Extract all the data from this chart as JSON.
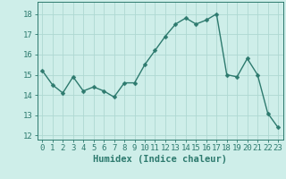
{
  "x": [
    0,
    1,
    2,
    3,
    4,
    5,
    6,
    7,
    8,
    9,
    10,
    11,
    12,
    13,
    14,
    15,
    16,
    17,
    18,
    19,
    20,
    21,
    22,
    23
  ],
  "y": [
    15.2,
    14.5,
    14.1,
    14.9,
    14.2,
    14.4,
    14.2,
    13.9,
    14.6,
    14.6,
    15.5,
    16.2,
    16.9,
    17.5,
    17.8,
    17.5,
    17.7,
    18.0,
    15.0,
    14.9,
    15.8,
    15.0,
    13.1,
    12.4
  ],
  "line_color": "#2d7a6e",
  "marker_color": "#2d7a6e",
  "bg_color": "#ceeee9",
  "grid_color": "#aed8d2",
  "tick_color": "#2d7a6e",
  "xlabel": "Humidex (Indice chaleur)",
  "xlim": [
    -0.5,
    23.5
  ],
  "ylim": [
    11.8,
    18.6
  ],
  "yticks": [
    12,
    13,
    14,
    15,
    16,
    17,
    18
  ],
  "xticks": [
    0,
    1,
    2,
    3,
    4,
    5,
    6,
    7,
    8,
    9,
    10,
    11,
    12,
    13,
    14,
    15,
    16,
    17,
    18,
    19,
    20,
    21,
    22,
    23
  ],
  "xtick_labels": [
    "0",
    "1",
    "2",
    "3",
    "4",
    "5",
    "6",
    "7",
    "8",
    "9",
    "10",
    "11",
    "12",
    "13",
    "14",
    "15",
    "16",
    "17",
    "18",
    "19",
    "20",
    "21",
    "22",
    "23"
  ],
  "line_width": 1.0,
  "marker_size": 2.5,
  "xlabel_fontsize": 7.5,
  "tick_fontsize": 6.5
}
